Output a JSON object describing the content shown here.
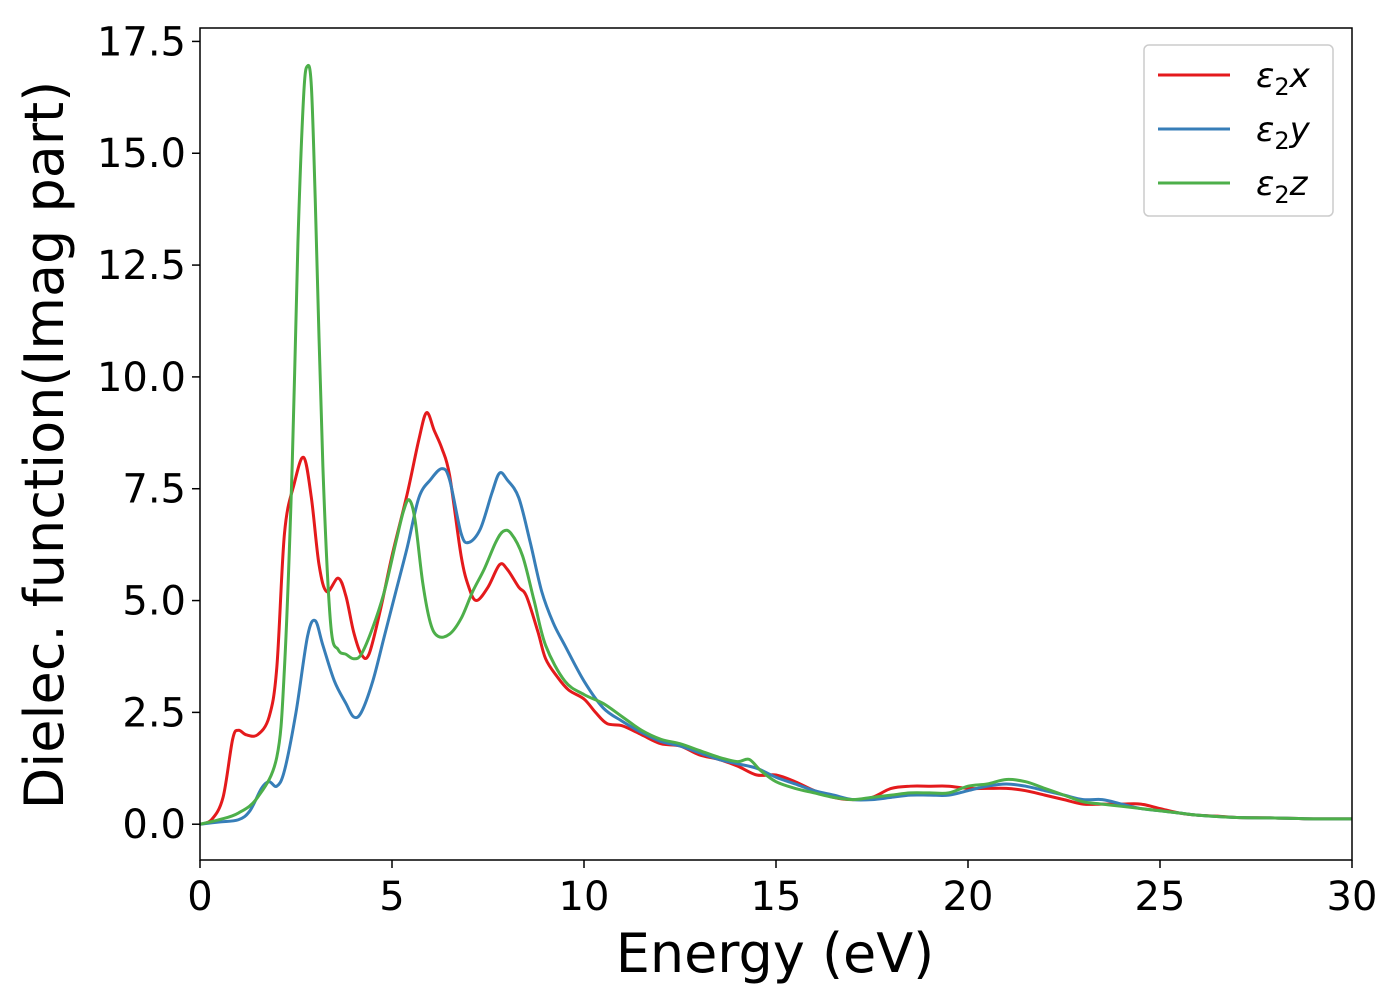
{
  "chart_data": {
    "type": "line",
    "title": "",
    "xlabel": "Energy (eV)",
    "ylabel": "Dielec. function(Imag part)",
    "xlim": [
      0,
      30
    ],
    "ylim": [
      -0.8,
      17.8
    ],
    "xticks": [
      "0",
      "5",
      "10",
      "15",
      "20",
      "25",
      "30"
    ],
    "yticks": [
      "0.0",
      "2.5",
      "5.0",
      "7.5",
      "10.0",
      "12.5",
      "15.0",
      "17.5"
    ],
    "grid": false,
    "legend_position": "top-right",
    "series": [
      {
        "name": "ε₂x",
        "legend_base": "ε",
        "legend_sub": "2",
        "legend_suffix": "x",
        "color": "#e41a1c",
        "points": [
          [
            0,
            0
          ],
          [
            0.3,
            0.1
          ],
          [
            0.6,
            0.6
          ],
          [
            0.85,
            1.9
          ],
          [
            1.0,
            2.1
          ],
          [
            1.2,
            2.0
          ],
          [
            1.5,
            2.0
          ],
          [
            1.8,
            2.4
          ],
          [
            2.0,
            3.5
          ],
          [
            2.2,
            6.5
          ],
          [
            2.45,
            7.6
          ],
          [
            2.7,
            8.2
          ],
          [
            2.9,
            7.3
          ],
          [
            3.1,
            5.8
          ],
          [
            3.3,
            5.2
          ],
          [
            3.6,
            5.5
          ],
          [
            3.8,
            5.1
          ],
          [
            4.0,
            4.3
          ],
          [
            4.2,
            3.8
          ],
          [
            4.4,
            3.8
          ],
          [
            4.7,
            4.8
          ],
          [
            5.0,
            6.0
          ],
          [
            5.4,
            7.4
          ],
          [
            5.7,
            8.6
          ],
          [
            5.9,
            9.2
          ],
          [
            6.1,
            8.8
          ],
          [
            6.3,
            8.4
          ],
          [
            6.5,
            7.8
          ],
          [
            6.8,
            6.0
          ],
          [
            7.0,
            5.3
          ],
          [
            7.2,
            5.0
          ],
          [
            7.5,
            5.3
          ],
          [
            7.8,
            5.8
          ],
          [
            8.0,
            5.7
          ],
          [
            8.3,
            5.3
          ],
          [
            8.5,
            5.1
          ],
          [
            8.8,
            4.3
          ],
          [
            9.0,
            3.7
          ],
          [
            9.3,
            3.3
          ],
          [
            9.6,
            3.0
          ],
          [
            10.0,
            2.8
          ],
          [
            10.3,
            2.5
          ],
          [
            10.6,
            2.25
          ],
          [
            11.0,
            2.2
          ],
          [
            11.5,
            2.0
          ],
          [
            12.0,
            1.8
          ],
          [
            12.5,
            1.75
          ],
          [
            13.0,
            1.55
          ],
          [
            13.5,
            1.45
          ],
          [
            14.0,
            1.3
          ],
          [
            14.5,
            1.1
          ],
          [
            15.0,
            1.1
          ],
          [
            15.5,
            0.95
          ],
          [
            16.0,
            0.75
          ],
          [
            16.5,
            0.6
          ],
          [
            17.0,
            0.55
          ],
          [
            17.5,
            0.6
          ],
          [
            18.0,
            0.8
          ],
          [
            18.5,
            0.85
          ],
          [
            19.0,
            0.85
          ],
          [
            19.5,
            0.85
          ],
          [
            20.0,
            0.8
          ],
          [
            20.5,
            0.8
          ],
          [
            21.0,
            0.8
          ],
          [
            21.5,
            0.75
          ],
          [
            22.0,
            0.65
          ],
          [
            22.5,
            0.55
          ],
          [
            23.0,
            0.45
          ],
          [
            23.5,
            0.45
          ],
          [
            24.0,
            0.45
          ],
          [
            24.5,
            0.45
          ],
          [
            25.0,
            0.35
          ],
          [
            25.5,
            0.25
          ],
          [
            26.0,
            0.2
          ],
          [
            26.5,
            0.18
          ],
          [
            27.0,
            0.15
          ],
          [
            28.0,
            0.14
          ],
          [
            29.0,
            0.12
          ],
          [
            30.0,
            0.12
          ]
        ]
      },
      {
        "name": "ε₂y",
        "legend_base": "ε",
        "legend_sub": "2",
        "legend_suffix": "y",
        "color": "#377eb8",
        "points": [
          [
            0,
            0
          ],
          [
            0.5,
            0.05
          ],
          [
            1.0,
            0.1
          ],
          [
            1.3,
            0.3
          ],
          [
            1.6,
            0.8
          ],
          [
            1.8,
            0.95
          ],
          [
            2.0,
            0.85
          ],
          [
            2.2,
            1.2
          ],
          [
            2.5,
            2.5
          ],
          [
            2.8,
            4.2
          ],
          [
            3.0,
            4.55
          ],
          [
            3.2,
            4.0
          ],
          [
            3.5,
            3.2
          ],
          [
            3.8,
            2.7
          ],
          [
            4.0,
            2.4
          ],
          [
            4.2,
            2.5
          ],
          [
            4.5,
            3.2
          ],
          [
            4.8,
            4.2
          ],
          [
            5.1,
            5.2
          ],
          [
            5.4,
            6.2
          ],
          [
            5.7,
            7.3
          ],
          [
            6.0,
            7.7
          ],
          [
            6.3,
            7.95
          ],
          [
            6.5,
            7.7
          ],
          [
            6.8,
            6.5
          ],
          [
            7.0,
            6.3
          ],
          [
            7.3,
            6.6
          ],
          [
            7.6,
            7.4
          ],
          [
            7.8,
            7.85
          ],
          [
            8.0,
            7.7
          ],
          [
            8.3,
            7.3
          ],
          [
            8.6,
            6.3
          ],
          [
            8.9,
            5.2
          ],
          [
            9.2,
            4.5
          ],
          [
            9.5,
            4.0
          ],
          [
            10.0,
            3.2
          ],
          [
            10.5,
            2.6
          ],
          [
            11.0,
            2.3
          ],
          [
            11.5,
            2.05
          ],
          [
            12.0,
            1.85
          ],
          [
            12.5,
            1.75
          ],
          [
            13.0,
            1.6
          ],
          [
            13.5,
            1.45
          ],
          [
            14.0,
            1.35
          ],
          [
            14.5,
            1.25
          ],
          [
            15.0,
            1.05
          ],
          [
            15.5,
            0.9
          ],
          [
            16.0,
            0.75
          ],
          [
            16.5,
            0.65
          ],
          [
            17.0,
            0.55
          ],
          [
            17.5,
            0.55
          ],
          [
            18.0,
            0.6
          ],
          [
            18.5,
            0.65
          ],
          [
            19.0,
            0.65
          ],
          [
            19.5,
            0.65
          ],
          [
            20.0,
            0.75
          ],
          [
            20.5,
            0.85
          ],
          [
            21.0,
            0.9
          ],
          [
            21.5,
            0.85
          ],
          [
            22.0,
            0.75
          ],
          [
            22.5,
            0.65
          ],
          [
            23.0,
            0.55
          ],
          [
            23.5,
            0.55
          ],
          [
            24.0,
            0.45
          ],
          [
            24.5,
            0.35
          ],
          [
            25.0,
            0.3
          ],
          [
            25.5,
            0.25
          ],
          [
            26.0,
            0.2
          ],
          [
            27.0,
            0.15
          ],
          [
            28.0,
            0.14
          ],
          [
            29.0,
            0.12
          ],
          [
            30.0,
            0.12
          ]
        ]
      },
      {
        "name": "ε₂z",
        "legend_base": "ε",
        "legend_sub": "2",
        "legend_suffix": "z",
        "color": "#4daf4a",
        "points": [
          [
            0,
            0
          ],
          [
            0.5,
            0.1
          ],
          [
            1.0,
            0.25
          ],
          [
            1.5,
            0.6
          ],
          [
            2.0,
            1.5
          ],
          [
            2.2,
            3.5
          ],
          [
            2.4,
            8.0
          ],
          [
            2.55,
            13.0
          ],
          [
            2.7,
            16.3
          ],
          [
            2.8,
            16.95
          ],
          [
            2.9,
            16.5
          ],
          [
            3.0,
            14.0
          ],
          [
            3.2,
            8.0
          ],
          [
            3.4,
            4.5
          ],
          [
            3.6,
            3.9
          ],
          [
            3.8,
            3.8
          ],
          [
            4.0,
            3.7
          ],
          [
            4.2,
            3.8
          ],
          [
            4.5,
            4.4
          ],
          [
            4.8,
            5.2
          ],
          [
            5.1,
            6.3
          ],
          [
            5.3,
            7.0
          ],
          [
            5.45,
            7.25
          ],
          [
            5.6,
            6.8
          ],
          [
            5.8,
            5.4
          ],
          [
            6.0,
            4.5
          ],
          [
            6.2,
            4.2
          ],
          [
            6.5,
            4.25
          ],
          [
            6.8,
            4.6
          ],
          [
            7.1,
            5.2
          ],
          [
            7.4,
            5.7
          ],
          [
            7.7,
            6.3
          ],
          [
            7.9,
            6.55
          ],
          [
            8.1,
            6.5
          ],
          [
            8.4,
            6.0
          ],
          [
            8.7,
            5.0
          ],
          [
            9.0,
            4.0
          ],
          [
            9.5,
            3.2
          ],
          [
            10.0,
            2.9
          ],
          [
            10.5,
            2.7
          ],
          [
            11.0,
            2.4
          ],
          [
            11.5,
            2.1
          ],
          [
            12.0,
            1.9
          ],
          [
            12.5,
            1.8
          ],
          [
            13.0,
            1.65
          ],
          [
            13.5,
            1.5
          ],
          [
            14.0,
            1.4
          ],
          [
            14.3,
            1.45
          ],
          [
            14.6,
            1.2
          ],
          [
            15.0,
            0.95
          ],
          [
            15.5,
            0.8
          ],
          [
            16.0,
            0.7
          ],
          [
            16.5,
            0.6
          ],
          [
            17.0,
            0.55
          ],
          [
            17.5,
            0.6
          ],
          [
            18.0,
            0.65
          ],
          [
            18.5,
            0.7
          ],
          [
            19.0,
            0.7
          ],
          [
            19.5,
            0.7
          ],
          [
            20.0,
            0.85
          ],
          [
            20.5,
            0.9
          ],
          [
            21.0,
            1.0
          ],
          [
            21.5,
            0.95
          ],
          [
            22.0,
            0.8
          ],
          [
            22.5,
            0.65
          ],
          [
            23.0,
            0.5
          ],
          [
            23.5,
            0.45
          ],
          [
            24.0,
            0.4
          ],
          [
            24.5,
            0.35
          ],
          [
            25.0,
            0.3
          ],
          [
            25.5,
            0.25
          ],
          [
            26.0,
            0.2
          ],
          [
            27.0,
            0.15
          ],
          [
            28.0,
            0.14
          ],
          [
            29.0,
            0.12
          ],
          [
            30.0,
            0.12
          ]
        ]
      }
    ]
  }
}
